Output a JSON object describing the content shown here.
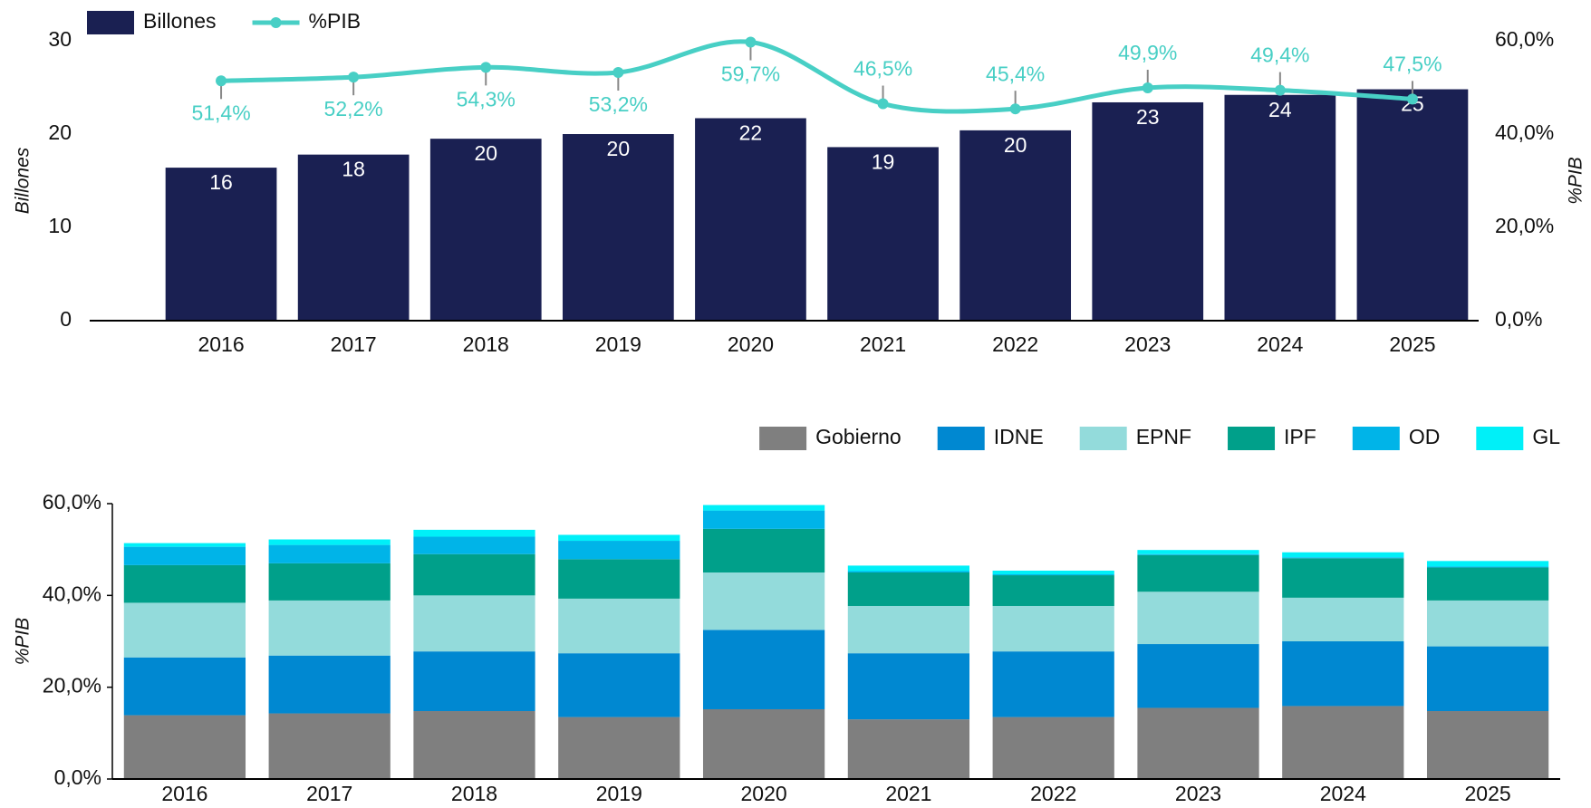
{
  "chart_data": [
    {
      "type": "bar",
      "categories": [
        "2016",
        "2017",
        "2018",
        "2019",
        "2020",
        "2021",
        "2022",
        "2023",
        "2024",
        "2025"
      ],
      "series": [
        {
          "name": "Billones",
          "type": "bar",
          "color": "#1a2052",
          "values": [
            16.4,
            17.8,
            19.5,
            20.0,
            21.7,
            18.6,
            20.4,
            23.4,
            24.2,
            24.8
          ],
          "value_labels": [
            "16",
            "18",
            "20",
            "20",
            "22",
            "19",
            "20",
            "23",
            "24",
            "25"
          ]
        },
        {
          "name": "%PIB",
          "type": "line",
          "axis": "y2",
          "color": "#48cfc5",
          "values": [
            51.4,
            52.2,
            54.3,
            53.2,
            59.7,
            46.5,
            45.4,
            49.9,
            49.4,
            47.5
          ],
          "value_labels": [
            "51,4%",
            "52,2%",
            "54,3%",
            "53,2%",
            "59,7%",
            "46,5%",
            "45,4%",
            "49,9%",
            "49,4%",
            "47,5%"
          ]
        }
      ],
      "ylabel": "Billones",
      "y2label": "%PIB",
      "ylim": [
        0,
        30
      ],
      "yticks": [
        0,
        10,
        20,
        30
      ],
      "y2lim": [
        0,
        60
      ],
      "y2ticks": [
        {
          "value": 0,
          "label": "0,0%"
        },
        {
          "value": 20,
          "label": "20,0%"
        },
        {
          "value": 40,
          "label": "40,0%"
        },
        {
          "value": 60,
          "label": "60,0%"
        }
      ],
      "legend": "top-left"
    },
    {
      "type": "stacked_bar",
      "categories": [
        "2016",
        "2017",
        "2018",
        "2019",
        "2020",
        "2021",
        "2022",
        "2023",
        "2024",
        "2025"
      ],
      "series": [
        {
          "name": "Gobierno",
          "color": "#7f7f7f",
          "values": [
            13.9,
            14.3,
            14.8,
            13.5,
            15.2,
            13.0,
            13.5,
            15.5,
            15.9,
            14.8
          ]
        },
        {
          "name": "IDNE",
          "color": "#0088d1",
          "values": [
            12.6,
            12.6,
            13.0,
            13.9,
            17.3,
            14.4,
            14.3,
            13.9,
            14.1,
            14.1
          ]
        },
        {
          "name": "EPNF",
          "color": "#93dbdb",
          "values": [
            11.9,
            12.0,
            12.2,
            11.9,
            12.5,
            10.3,
            9.9,
            11.4,
            9.5,
            10.0
          ]
        },
        {
          "name": "IPF",
          "color": "#00a08a",
          "values": [
            8.2,
            8.1,
            9.0,
            8.6,
            9.5,
            7.3,
            6.7,
            8.0,
            8.6,
            7.2
          ]
        },
        {
          "name": "OD",
          "color": "#00b4e8",
          "values": [
            4.0,
            4.0,
            3.8,
            4.0,
            4.0,
            0.3,
            0.2,
            0.2,
            0.2,
            0.2
          ]
        },
        {
          "name": "GL",
          "color": "#00f0f8",
          "values": [
            0.8,
            1.2,
            1.5,
            1.3,
            1.2,
            1.2,
            0.8,
            0.9,
            1.1,
            1.2
          ]
        }
      ],
      "ylabel": "%PIB",
      "ylim": [
        0,
        60
      ],
      "yticks": [
        {
          "value": 0,
          "label": "0,0%"
        },
        {
          "value": 20,
          "label": "20,0%"
        },
        {
          "value": 40,
          "label": "40,0%"
        },
        {
          "value": 60,
          "label": "60,0%"
        }
      ],
      "legend": "top-right"
    }
  ]
}
